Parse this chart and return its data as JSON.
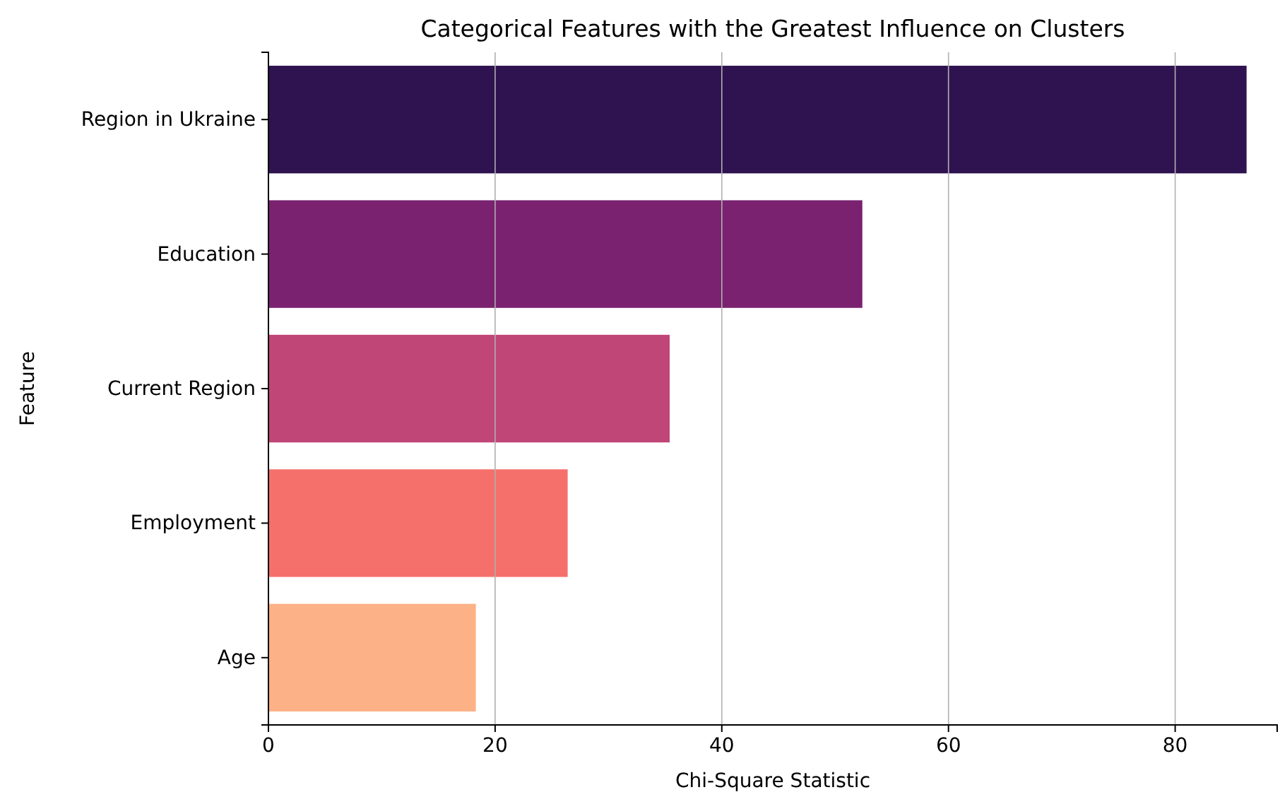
{
  "chart_data": {
    "type": "bar",
    "orientation": "horizontal",
    "title": "Categorical Features with the Greatest Influence on Clusters",
    "xlabel": "Chi-Square Statistic",
    "ylabel": "Feature",
    "categories": [
      "Region in Ukraine",
      "Education",
      "Current Region",
      "Employment",
      "Age"
    ],
    "values": [
      86.3,
      52.4,
      35.4,
      26.4,
      18.3
    ],
    "colors": [
      "#2f1350",
      "#7a2270",
      "#c04677",
      "#f6706b",
      "#fdb186"
    ],
    "xlim": [
      0,
      89
    ],
    "xticks": [
      0,
      20,
      40,
      60,
      80
    ],
    "grid": "x"
  }
}
